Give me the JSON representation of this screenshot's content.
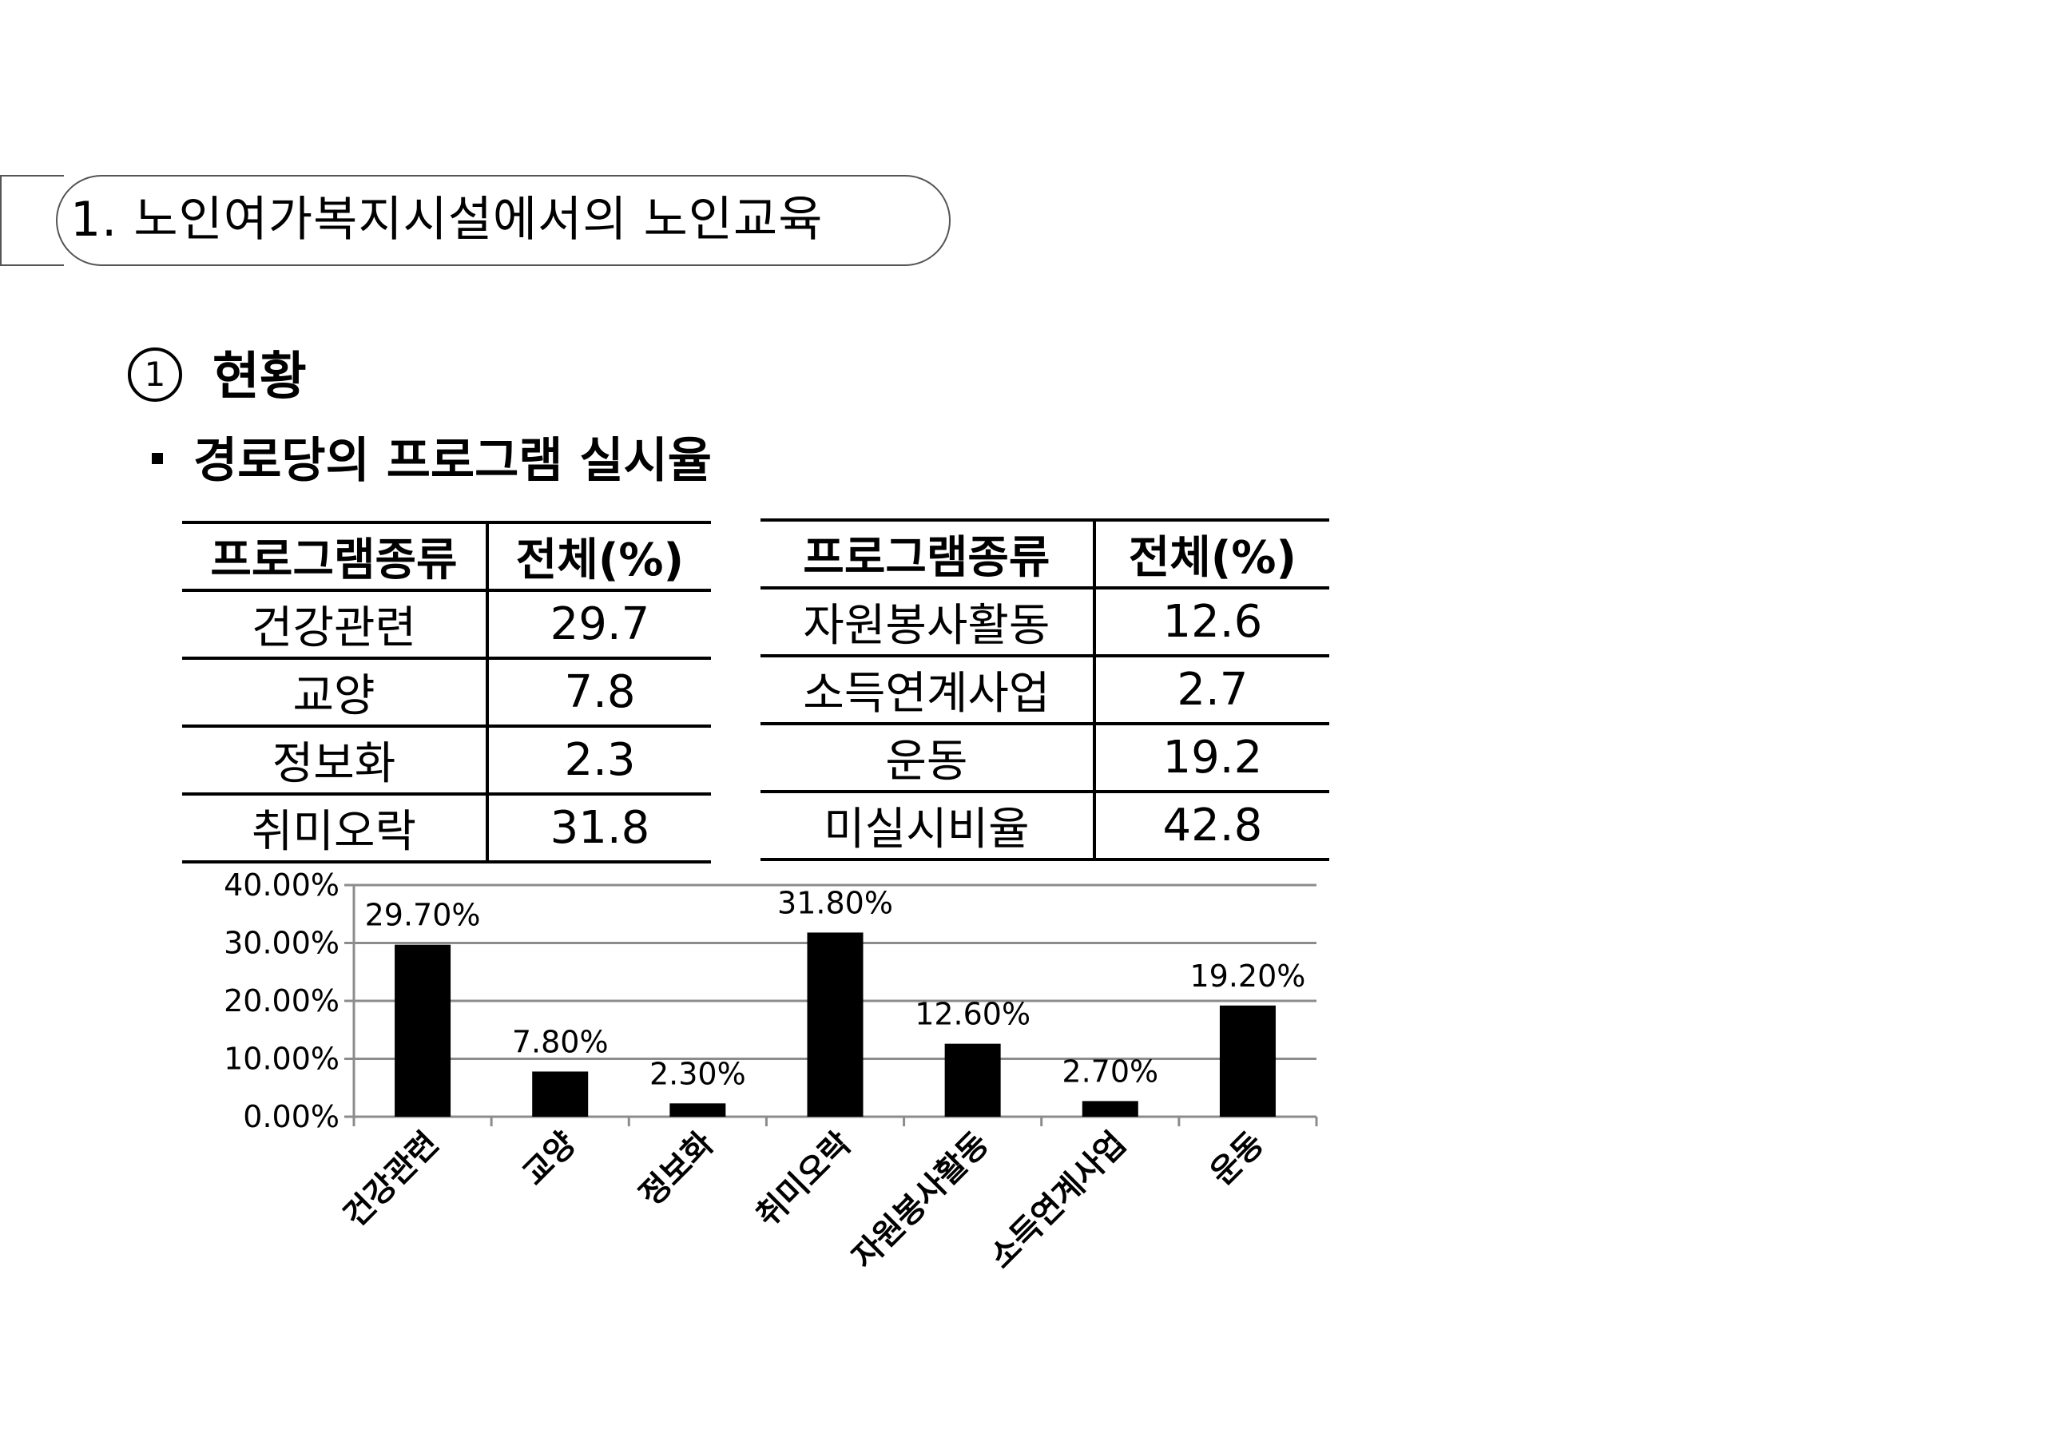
{
  "title": "1. 노인여가복지시설에서의 노인교육",
  "section": {
    "number": "1",
    "label": "현황"
  },
  "bullet": "경로당의 프로그램 실시율",
  "table_left": {
    "headers": [
      "프로그램종류",
      "전체(%)"
    ],
    "rows": [
      [
        "건강관련",
        "29.7"
      ],
      [
        "교양",
        "7.8"
      ],
      [
        "정보화",
        "2.3"
      ],
      [
        "취미오락",
        "31.8"
      ]
    ]
  },
  "table_right": {
    "headers": [
      "프로그램종류",
      "전체(%)"
    ],
    "rows": [
      [
        "자원봉사활동",
        "12.6"
      ],
      [
        "소득연계사업",
        "2.7"
      ],
      [
        "운동",
        "19.2"
      ],
      [
        "미실시비율",
        "42.8"
      ]
    ]
  },
  "chart_data": {
    "type": "bar",
    "categories": [
      "건강관련",
      "교양",
      "정보화",
      "취미오락",
      "자원봉사활동",
      "소득연계사업",
      "운동"
    ],
    "values": [
      29.7,
      7.8,
      2.3,
      31.8,
      12.6,
      2.7,
      19.2
    ],
    "data_labels": [
      "29.70%",
      "7.80%",
      "2.30%",
      "31.80%",
      "12.60%",
      "2.70%",
      "19.20%"
    ],
    "y_ticks": [
      "0.00%",
      "10.00%",
      "20.00%",
      "30.00%",
      "40.00%"
    ],
    "ylim": [
      0,
      40
    ],
    "grid": true,
    "bar_color": "#000000",
    "grid_color": "#8c8c8c"
  }
}
